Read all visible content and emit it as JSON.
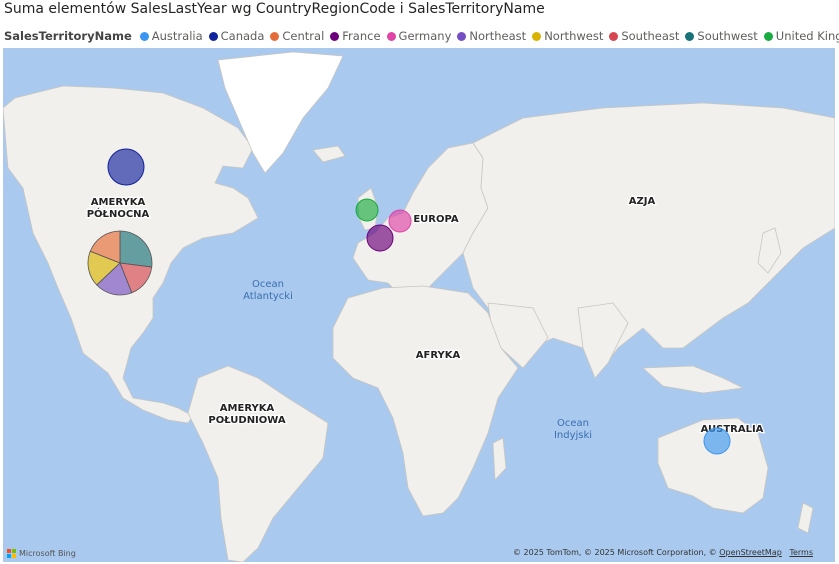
{
  "title": "Suma elementów SalesLastYear wg CountryRegionCode i SalesTerritoryName",
  "legend": {
    "title": "SalesTerritoryName",
    "items": [
      {
        "label": "Australia",
        "color": "#3a96f0"
      },
      {
        "label": "Canada",
        "color": "#12239e"
      },
      {
        "label": "Central",
        "color": "#e66c37"
      },
      {
        "label": "France",
        "color": "#6b007b"
      },
      {
        "label": "Germany",
        "color": "#e044a7"
      },
      {
        "label": "Northeast",
        "color": "#744ec2"
      },
      {
        "label": "Northwest",
        "color": "#d9b300"
      },
      {
        "label": "Southeast",
        "color": "#d64550"
      },
      {
        "label": "Southwest",
        "color": "#197278"
      },
      {
        "label": "United Kingdom",
        "color": "#1aab40"
      }
    ]
  },
  "map_labels": {
    "north_america": [
      "AMERYKA",
      "PÓŁNOCNA"
    ],
    "south_america": [
      "AMERYKA",
      "POŁUDNIOWA"
    ],
    "europe": "EUROPA",
    "asia": "AZJA",
    "africa": "AFRYKA",
    "australia": "AUSTRALIA",
    "atlantic": [
      "Ocean",
      "Atlantycki"
    ],
    "indian": [
      "Ocean",
      "Indyjski"
    ]
  },
  "bing_logo": "Microsoft Bing",
  "copyright": {
    "text": "© 2025 TomTom, © 2025 Microsoft Corporation, ©",
    "osm": "OpenStreetMap",
    "terms": "Terms"
  },
  "map_data": {
    "colors": {
      "water": "#a9c9ee",
      "land": "#f2f0ec",
      "ice": "#ffffff"
    },
    "bubbles": [
      {
        "country": "CA",
        "territory": "Canada"
      },
      {
        "country": "GB",
        "territory": "United Kingdom"
      },
      {
        "country": "DE",
        "territory": "Germany"
      },
      {
        "country": "FR",
        "territory": "France"
      },
      {
        "country": "AU",
        "territory": "Australia"
      }
    ],
    "us_pie": {
      "country": "US",
      "slices": [
        {
          "territory": "Southwest",
          "share": 0.27
        },
        {
          "territory": "Southeast",
          "share": 0.17
        },
        {
          "territory": "Northeast",
          "share": 0.19
        },
        {
          "territory": "Northwest",
          "share": 0.18
        },
        {
          "territory": "Central",
          "share": 0.19
        }
      ]
    }
  }
}
